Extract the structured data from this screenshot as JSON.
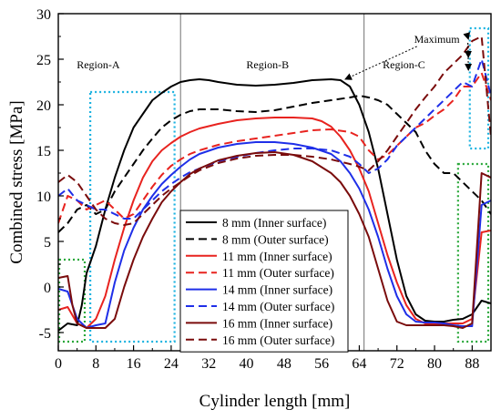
{
  "chart_data": {
    "type": "line",
    "title": "",
    "xlabel": "Cylinder length [mm]",
    "ylabel": "Combined stress [MPa]",
    "xlim": [
      0,
      92
    ],
    "ylim": [
      -7,
      30
    ],
    "x_ticks": [
      0,
      8,
      16,
      24,
      32,
      40,
      48,
      56,
      64,
      72,
      80,
      88
    ],
    "y_ticks": [
      -5,
      0,
      5,
      10,
      15,
      20,
      25,
      30
    ],
    "grid": false,
    "legend_position": "lower-center",
    "region_dividers_x": [
      26,
      65
    ],
    "regions": [
      {
        "label": "Region-A",
        "x": 8.5,
        "y": 24.4
      },
      {
        "label": "Region-B",
        "x": 44.5,
        "y": 24.4
      },
      {
        "label": "Region-C",
        "x": 73.5,
        "y": 24.4
      }
    ],
    "annotation": {
      "label": "Maximum",
      "x": 80.5,
      "y": 27.2,
      "targets": [
        [
          61,
          22.8
        ],
        [
          87.2,
          27.2
        ],
        [
          87.2,
          25.2
        ],
        [
          87.2,
          23.8
        ]
      ]
    },
    "highlight_boxes": [
      {
        "x0": 6.8,
        "x1": 25.3,
        "y0": -6.0,
        "y1": 21.4,
        "color": "#1ab2e0"
      },
      {
        "x0": 87.5,
        "x1": 92,
        "y0": 15.2,
        "y1": 28.4,
        "color": "#1ab2e0"
      },
      {
        "x0": 0.2,
        "x1": 6.2,
        "y0": -6.0,
        "y1": 3.0,
        "color": "#2aa83a"
      },
      {
        "x0": 85.0,
        "x1": 92,
        "y0": -6.0,
        "y1": 13.5,
        "color": "#2aa83a"
      }
    ],
    "series": [
      {
        "name": "8 mm (Inner surface)",
        "color": "#000000",
        "dash": "solid",
        "x": [
          0,
          2,
          4,
          5,
          6,
          8,
          10,
          12,
          14,
          16,
          18,
          20,
          22,
          24,
          26,
          28,
          30,
          32,
          34,
          38,
          42,
          46,
          50,
          54,
          58,
          60,
          62,
          64,
          66,
          68,
          70,
          72,
          74,
          76,
          78,
          80,
          82,
          84,
          86,
          88,
          90,
          92
        ],
        "y": [
          -4.8,
          -4.0,
          -4.2,
          -2.0,
          1.5,
          4.5,
          8.5,
          12.0,
          15.0,
          17.5,
          19.0,
          20.5,
          21.3,
          22.0,
          22.5,
          22.7,
          22.8,
          22.7,
          22.5,
          22.2,
          22.1,
          22.2,
          22.4,
          22.7,
          22.8,
          22.7,
          22.0,
          20.0,
          17.0,
          13.0,
          8.0,
          3.0,
          -1.0,
          -3.0,
          -3.7,
          -3.8,
          -3.8,
          -3.6,
          -3.5,
          -3.0,
          -1.5,
          -1.8
        ]
      },
      {
        "name": "8 mm (Outer surface)",
        "color": "#000000",
        "dash": "dashed",
        "x": [
          0,
          2,
          4,
          6,
          8,
          10,
          12,
          14,
          16,
          18,
          20,
          22,
          24,
          26,
          28,
          30,
          34,
          38,
          42,
          46,
          50,
          54,
          58,
          62,
          64,
          66,
          68,
          70,
          72,
          74,
          76,
          78,
          80,
          82,
          84,
          86,
          88,
          90,
          92
        ],
        "y": [
          6.0,
          7.0,
          8.5,
          9.0,
          8.0,
          8.5,
          10.5,
          12.0,
          13.5,
          15.0,
          16.3,
          17.5,
          18.3,
          18.9,
          19.3,
          19.5,
          19.5,
          19.3,
          19.2,
          19.4,
          19.8,
          20.2,
          20.5,
          20.8,
          21.0,
          20.8,
          20.5,
          20.0,
          19.0,
          18.0,
          17.0,
          15.0,
          13.5,
          12.5,
          12.5,
          11.5,
          10.5,
          9.5,
          8.0
        ]
      },
      {
        "name": "11 mm (Inner surface)",
        "color": "#e8231f",
        "dash": "solid",
        "x": [
          0,
          2,
          4,
          6,
          8,
          10,
          12,
          14,
          16,
          18,
          20,
          22,
          24,
          26,
          28,
          30,
          34,
          38,
          42,
          46,
          50,
          54,
          56,
          58,
          60,
          62,
          64,
          66,
          68,
          70,
          72,
          74,
          76,
          78,
          80,
          82,
          84,
          86,
          88,
          90,
          92
        ],
        "y": [
          -2.5,
          -2.2,
          -4.0,
          -4.5,
          -3.5,
          -1.0,
          3.0,
          6.5,
          9.5,
          12.0,
          13.8,
          15.0,
          15.8,
          16.5,
          17.0,
          17.4,
          17.9,
          18.3,
          18.5,
          18.6,
          18.6,
          18.5,
          18.2,
          17.6,
          16.5,
          15.0,
          13.0,
          10.5,
          7.0,
          3.5,
          0.5,
          -2.0,
          -3.5,
          -4.0,
          -4.0,
          -4.0,
          -4.0,
          -4.0,
          -3.5,
          6.0,
          6.2
        ]
      },
      {
        "name": "11 mm (Outer surface)",
        "color": "#e8231f",
        "dash": "dashed",
        "x": [
          0,
          2,
          4,
          6,
          8,
          10,
          12,
          14,
          16,
          18,
          20,
          22,
          24,
          26,
          28,
          30,
          34,
          38,
          42,
          46,
          50,
          54,
          58,
          62,
          64,
          66,
          68,
          70,
          72,
          74,
          76,
          78,
          80,
          82,
          84,
          86,
          88,
          90,
          92
        ],
        "y": [
          7.0,
          10.0,
          9.5,
          8.5,
          9.0,
          9.5,
          8.5,
          7.5,
          8.0,
          9.5,
          11.0,
          12.3,
          13.3,
          14.0,
          14.6,
          15.0,
          15.6,
          16.0,
          16.3,
          16.6,
          16.9,
          17.2,
          17.3,
          17.0,
          16.5,
          15.0,
          14.0,
          14.5,
          15.5,
          16.5,
          17.5,
          18.0,
          18.8,
          19.5,
          20.5,
          22.0,
          22.0,
          23.5,
          20.5
        ]
      },
      {
        "name": "14 mm (Inner surface)",
        "color": "#1f2fe8",
        "dash": "solid",
        "x": [
          0,
          2,
          4,
          6,
          8,
          10,
          12,
          14,
          16,
          18,
          20,
          22,
          24,
          26,
          28,
          30,
          34,
          38,
          42,
          46,
          50,
          54,
          58,
          60,
          62,
          64,
          66,
          68,
          70,
          72,
          74,
          76,
          78,
          80,
          82,
          84,
          86,
          88,
          90,
          92
        ],
        "y": [
          -0.2,
          -0.5,
          -3.5,
          -4.5,
          -4.2,
          -4.0,
          0.5,
          4.0,
          6.5,
          8.5,
          10.0,
          11.3,
          12.3,
          13.2,
          14.0,
          14.6,
          15.3,
          15.7,
          15.9,
          15.9,
          15.7,
          15.3,
          14.6,
          13.8,
          12.5,
          10.8,
          8.5,
          5.5,
          2.0,
          -1.0,
          -3.0,
          -3.8,
          -3.9,
          -3.9,
          -4.0,
          -4.2,
          -4.3,
          -4.3,
          9.0,
          9.5
        ]
      },
      {
        "name": "14 mm (Outer surface)",
        "color": "#1f2fe8",
        "dash": "dashed",
        "x": [
          0,
          2,
          4,
          6,
          8,
          10,
          12,
          14,
          16,
          18,
          20,
          22,
          24,
          26,
          28,
          30,
          34,
          38,
          42,
          46,
          50,
          54,
          58,
          62,
          64,
          66,
          68,
          70,
          72,
          74,
          76,
          78,
          80,
          82,
          84,
          86,
          88,
          90,
          92
        ],
        "y": [
          10.0,
          10.8,
          9.5,
          9.0,
          8.5,
          8.5,
          8.0,
          7.5,
          7.5,
          8.5,
          9.5,
          10.5,
          11.3,
          12.0,
          12.6,
          13.0,
          13.8,
          14.3,
          14.7,
          15.0,
          15.2,
          15.2,
          15.0,
          14.3,
          13.5,
          12.5,
          13.0,
          14.0,
          15.5,
          16.5,
          17.5,
          18.5,
          19.5,
          20.5,
          21.5,
          22.5,
          22.0,
          25.0,
          21.0
        ]
      },
      {
        "name": "16 mm (Inner surface)",
        "color": "#7a0c0c",
        "dash": "solid",
        "x": [
          0,
          2,
          3,
          4,
          6,
          8,
          10,
          12,
          14,
          16,
          18,
          20,
          22,
          24,
          26,
          28,
          30,
          34,
          38,
          42,
          46,
          50,
          54,
          58,
          60,
          62,
          64,
          66,
          68,
          70,
          72,
          74,
          76,
          78,
          80,
          82,
          84,
          86,
          88,
          90,
          92
        ],
        "y": [
          1.0,
          1.2,
          -2.0,
          -4.0,
          -4.5,
          -4.5,
          -4.5,
          -3.5,
          0.0,
          3.0,
          5.5,
          7.5,
          9.3,
          10.5,
          11.5,
          12.4,
          13.0,
          13.9,
          14.4,
          14.7,
          14.8,
          14.5,
          13.8,
          12.5,
          11.5,
          10.0,
          8.0,
          5.5,
          2.0,
          -1.5,
          -3.8,
          -4.2,
          -4.2,
          -4.2,
          -4.2,
          -4.2,
          -4.3,
          -4.5,
          -4.0,
          12.5,
          12.0
        ]
      },
      {
        "name": "16 mm (Outer surface)",
        "color": "#7a0c0c",
        "dash": "dashed",
        "x": [
          0,
          2,
          4,
          6,
          8,
          10,
          12,
          14,
          16,
          18,
          20,
          22,
          24,
          26,
          28,
          30,
          34,
          38,
          42,
          46,
          50,
          54,
          58,
          62,
          64,
          66,
          68,
          70,
          72,
          74,
          76,
          78,
          80,
          82,
          84,
          86,
          88,
          90,
          92
        ],
        "y": [
          11.5,
          12.3,
          11.5,
          10.0,
          8.5,
          7.5,
          7.0,
          6.8,
          7.0,
          8.0,
          9.0,
          10.0,
          10.8,
          11.5,
          12.2,
          12.8,
          13.6,
          14.1,
          14.4,
          14.5,
          14.5,
          14.3,
          14.0,
          13.5,
          13.2,
          12.8,
          13.8,
          15.0,
          16.5,
          18.0,
          19.5,
          20.8,
          22.0,
          23.5,
          24.5,
          25.5,
          27.0,
          27.5,
          16.5
        ]
      }
    ]
  }
}
